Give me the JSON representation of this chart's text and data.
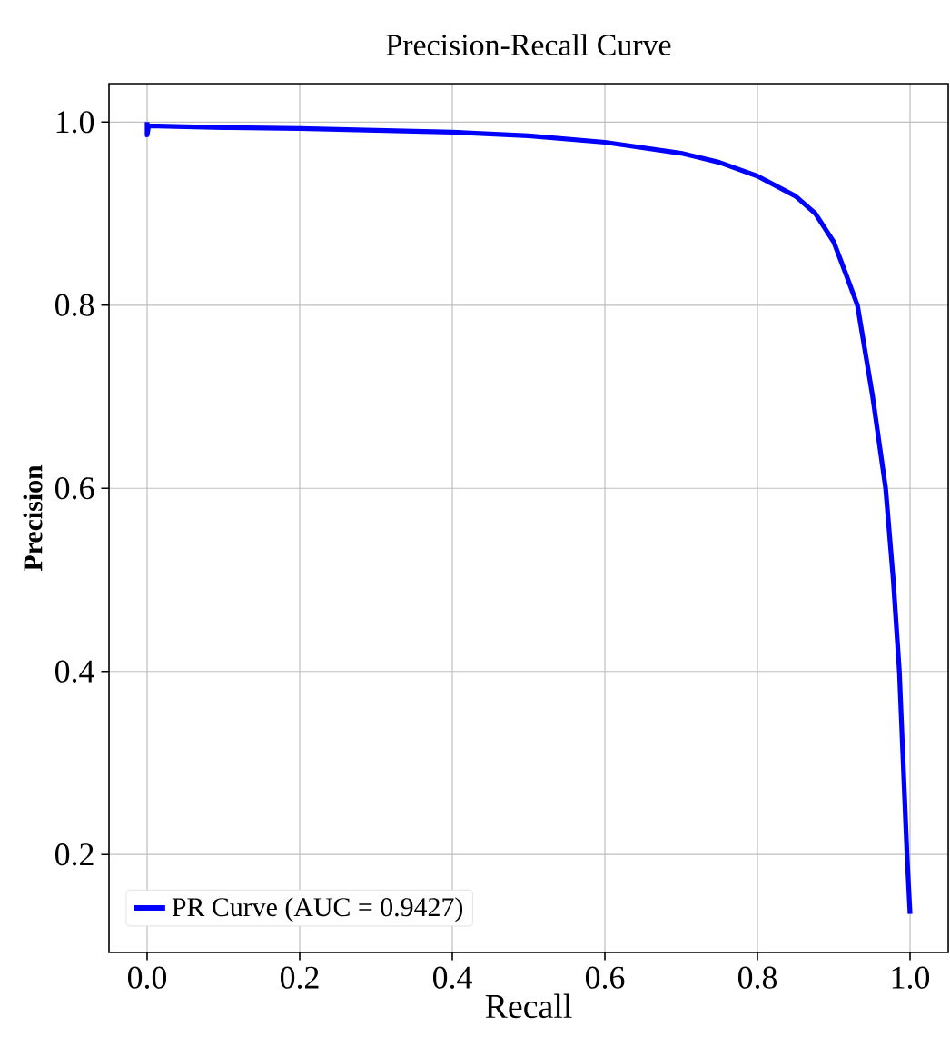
{
  "chart_data": {
    "type": "line",
    "title": "Precision-Recall Curve",
    "xlabel": "Recall",
    "ylabel": "Precision",
    "series": [
      {
        "name": "PR Curve (AUC = 0.9427)",
        "color": "#0000ff",
        "x": [
          0,
          0,
          0.002,
          0.05,
          0.1,
          0.2,
          0.3,
          0.4,
          0.5,
          0.6,
          0.7,
          0.75,
          0.8,
          0.85,
          0.876,
          0.9,
          0.915,
          0.931,
          0.951,
          0.968,
          0.978,
          0.986,
          0.991,
          0.996,
          1.0
        ],
        "values": [
          1.0,
          0.986,
          0.996,
          0.995,
          0.994,
          0.993,
          0.991,
          0.989,
          0.985,
          0.978,
          0.966,
          0.956,
          0.941,
          0.919,
          0.9,
          0.869,
          0.836,
          0.8,
          0.7,
          0.6,
          0.5,
          0.4,
          0.3,
          0.2,
          0.135
        ]
      }
    ],
    "xlim": [
      -0.05,
      1.05
    ],
    "ylim": [
      0.093,
      1.042
    ],
    "xticks": [
      {
        "value": 0,
        "label": "0.0"
      },
      0.2,
      0.4,
      0.6,
      0.8,
      {
        "value": 1,
        "label": "1.0"
      }
    ],
    "yticks": [
      0.2,
      0.4,
      0.6,
      0.8,
      {
        "value": 1,
        "label": "1.0"
      }
    ],
    "grid": true,
    "legend": "bottom left",
    "marker": "none",
    "line_style": "solid"
  }
}
